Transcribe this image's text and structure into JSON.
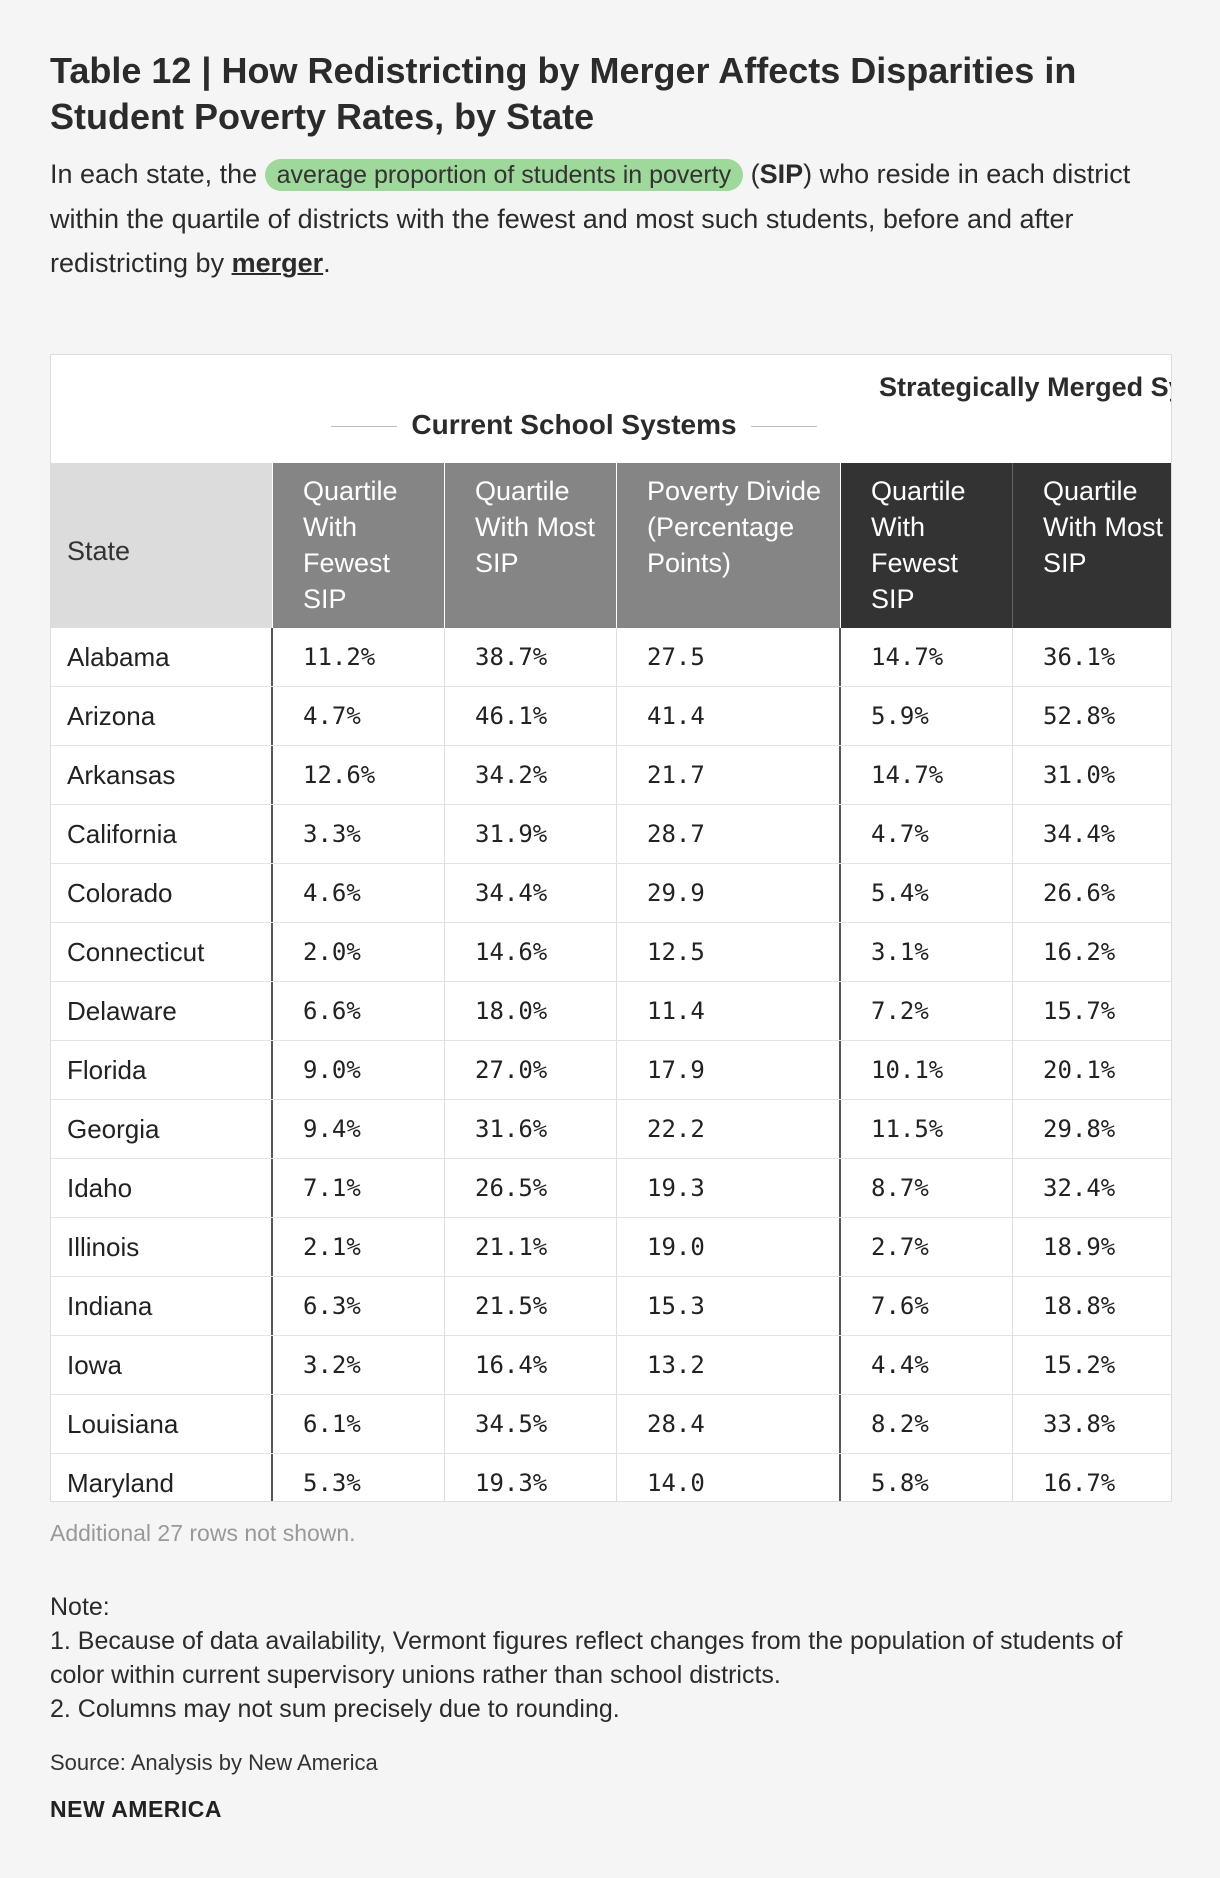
{
  "title": "Table 12 | How Redistricting by Merger Affects Disparities in Student Poverty Rates, by State",
  "subtitle": {
    "part1": "In each state, the ",
    "highlight": "average proportion of students in poverty",
    "part2": " (",
    "abbr": "SIP",
    "part3": ") who reside in each district within the quartile of districts with the fewest and most such students, before and after redistricting by ",
    "link": "merger",
    "part4": "."
  },
  "table": {
    "group_current": "Current School Systems",
    "group_merged": "Strategically Merged Systems",
    "headers": {
      "state": "State",
      "cur_fewest": "Quartile With Fewest SIP",
      "cur_most": "Quartile With Most SIP",
      "cur_divide": "Poverty Divide (Percentage Points)",
      "mer_fewest": "Quartile With Fewest SIP",
      "mer_most": "Quartile With Most SIP"
    },
    "rows": [
      [
        "Alabama",
        "11.2%",
        "38.7%",
        "27.5",
        "14.7%",
        "36.1%"
      ],
      [
        "Arizona",
        "4.7%",
        "46.1%",
        "41.4",
        "5.9%",
        "52.8%"
      ],
      [
        "Arkansas",
        "12.6%",
        "34.2%",
        "21.7",
        "14.7%",
        "31.0%"
      ],
      [
        "California",
        "3.3%",
        "31.9%",
        "28.7",
        "4.7%",
        "34.4%"
      ],
      [
        "Colorado",
        "4.6%",
        "34.4%",
        "29.9",
        "5.4%",
        "26.6%"
      ],
      [
        "Connecticut",
        "2.0%",
        "14.6%",
        "12.5",
        "3.1%",
        "16.2%"
      ],
      [
        "Delaware",
        "6.6%",
        "18.0%",
        "11.4",
        "7.2%",
        "15.7%"
      ],
      [
        "Florida",
        "9.0%",
        "27.0%",
        "17.9",
        "10.1%",
        "20.1%"
      ],
      [
        "Georgia",
        "9.4%",
        "31.6%",
        "22.2",
        "11.5%",
        "29.8%"
      ],
      [
        "Idaho",
        "7.1%",
        "26.5%",
        "19.3",
        "8.7%",
        "32.4%"
      ],
      [
        "Illinois",
        "2.1%",
        "21.1%",
        "19.0",
        "2.7%",
        "18.9%"
      ],
      [
        "Indiana",
        "6.3%",
        "21.5%",
        "15.3",
        "7.6%",
        "18.8%"
      ],
      [
        "Iowa",
        "3.2%",
        "16.4%",
        "13.2",
        "4.4%",
        "15.2%"
      ],
      [
        "Louisiana",
        "6.1%",
        "34.5%",
        "28.4",
        "8.2%",
        "33.8%"
      ],
      [
        "Maryland",
        "5.3%",
        "19.3%",
        "14.0",
        "5.8%",
        "16.7%"
      ]
    ]
  },
  "rows_not_shown": "Additional 27 rows not shown.",
  "note": {
    "label": "Note:",
    "items": [
      "1. Because of data availability, Vermont figures reflect changes from the population of students of color within current supervisory unions rather than school districts.",
      "2. Columns may not sum precisely due to rounding."
    ]
  },
  "source": "Source: Analysis by New America",
  "brand": "NEW AMERICA"
}
